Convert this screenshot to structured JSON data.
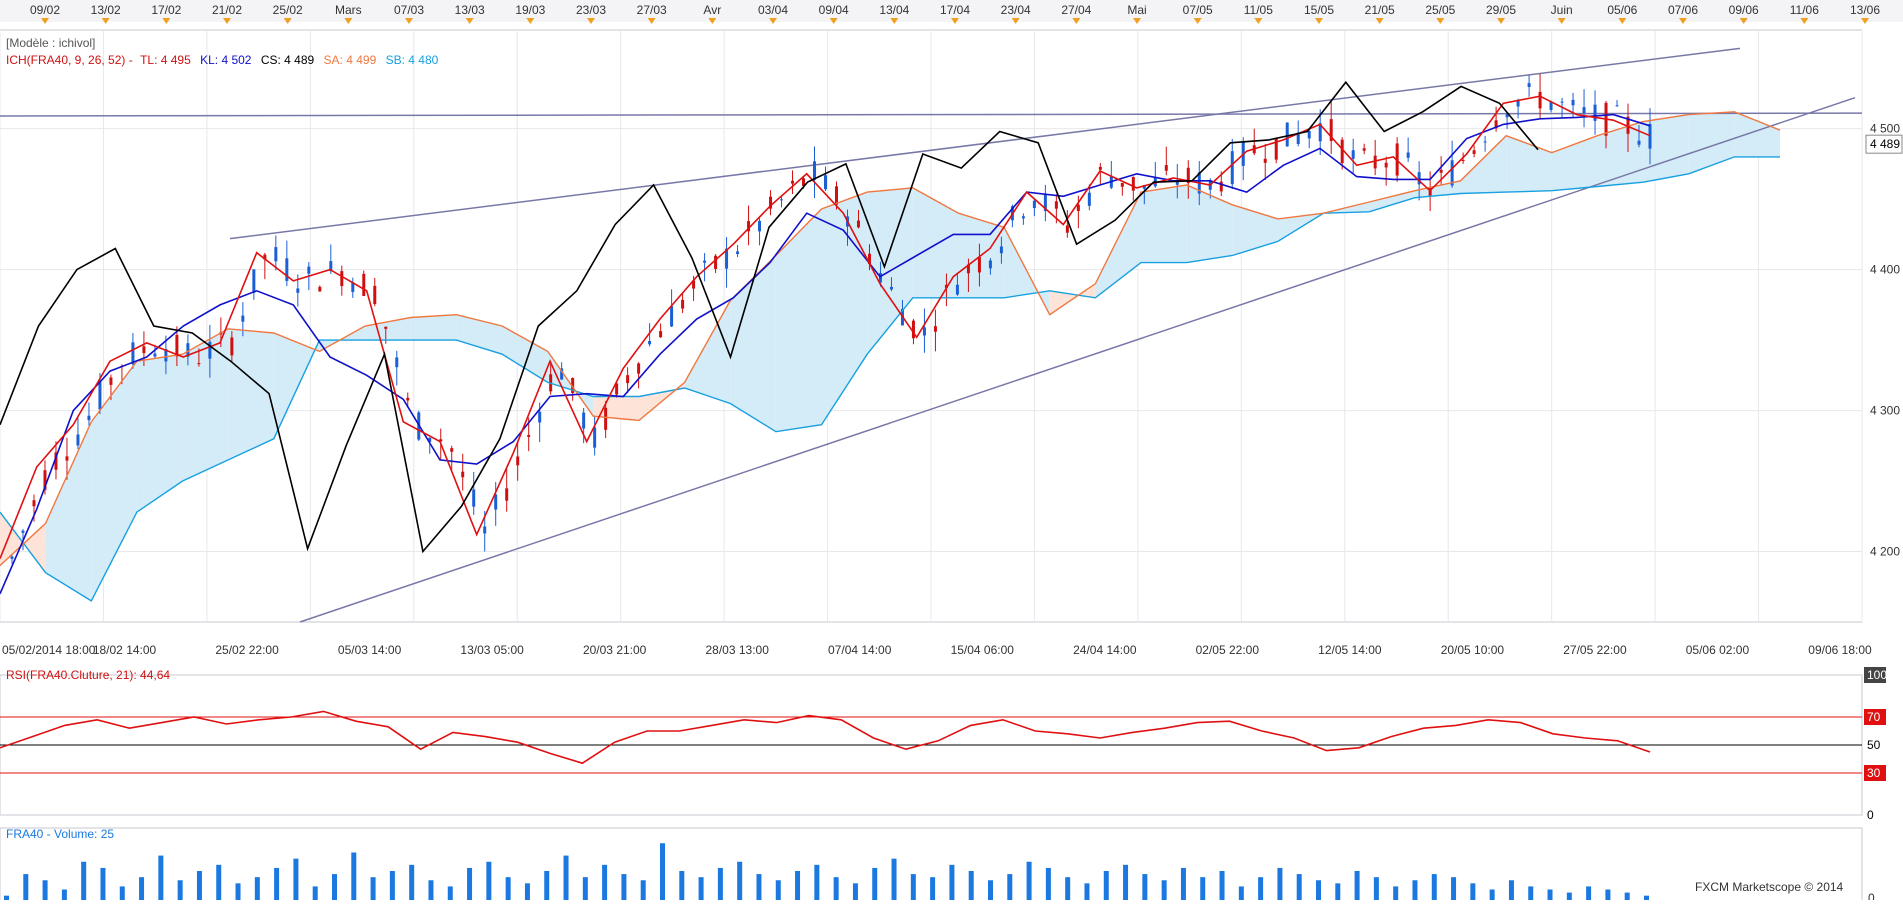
{
  "top_dates": [
    "09/02",
    "13/02",
    "17/02",
    "21/02",
    "25/02",
    "Mars",
    "07/03",
    "13/03",
    "19/03",
    "23/03",
    "27/03",
    "Avr",
    "03/04",
    "09/04",
    "13/04",
    "17/04",
    "23/04",
    "27/04",
    "Mai",
    "07/05",
    "11/05",
    "15/05",
    "21/05",
    "25/05",
    "29/05",
    "Juin",
    "05/06",
    "07/06",
    "09/06",
    "11/06",
    "13/06"
  ],
  "main_legend": {
    "model": "[Modèle : ichivol]",
    "ich": "ICH(FRA40, 9, 26, 52) -",
    "tl": "TL: 4 495",
    "kl": "KL: 4 502",
    "cs": "CS: 4 489",
    "sa": "SA: 4 499",
    "sb": "SB: 4 480"
  },
  "current_price_label": "4 489",
  "rsi_legend": "RSI(FRA40.Cluture, 21): 44,64",
  "volume_legend": "FRA40 - Volume: 25",
  "watermark": "FXCM Marketscope © 2014",
  "colors": {
    "tenkan": "#e01010",
    "kijun": "#1010cc",
    "chikou": "#000000",
    "senkou_a": "#f07840",
    "senkou_b": "#18a0e0",
    "cloud_bull": "#d4ecf8",
    "cloud_bear": "#fde3d8",
    "candle_up": "#1a5fd6",
    "candle_down": "#d01010",
    "trendline": "#7878a8",
    "rsi": "#e01010",
    "volume": "#1a78e0",
    "grid": "#e8e8ec",
    "marker": "#f0a020"
  },
  "chart_data": [
    {
      "type": "line",
      "title": "ICH(FRA40, 9, 26, 52)",
      "x_tick_labels": [
        "05/02/2014 18:00",
        "18/02 14:00",
        "25/02 22:00",
        "05/03 14:00",
        "13/03 05:00",
        "20/03 21:00",
        "28/03 13:00",
        "07/04 14:00",
        "15/04 06:00",
        "24/04 14:00",
        "02/05 22:00",
        "12/05 14:00",
        "20/05 10:00",
        "27/05 22:00",
        "05/06 02:00",
        "09/06 18:00"
      ],
      "y_tick_labels": [
        "4 200",
        "4 300",
        "4 400",
        "4 500"
      ],
      "ylim": [
        4150,
        4570
      ],
      "grid": true,
      "series": [
        {
          "name": "TL",
          "values": [
            4195,
            4260,
            4290,
            4335,
            4348,
            4338,
            4348,
            4412,
            4392,
            4400,
            4385,
            4292,
            4278,
            4212,
            4270,
            4335,
            4278,
            4330,
            4365,
            4395,
            4418,
            4445,
            4468,
            4440,
            4390,
            4352,
            4395,
            4415,
            4455,
            4432,
            4470,
            4458,
            4465,
            4460,
            4484,
            4492,
            4503,
            4474,
            4480,
            4456,
            4482,
            4518,
            4523,
            4510,
            4506,
            4495
          ]
        },
        {
          "name": "KL",
          "values": [
            4170,
            4230,
            4300,
            4328,
            4338,
            4360,
            4375,
            4385,
            4375,
            4338,
            4325,
            4308,
            4265,
            4262,
            4278,
            4310,
            4312,
            4310,
            4340,
            4365,
            4380,
            4405,
            4440,
            4428,
            4395,
            4410,
            4425,
            4425,
            4455,
            4452,
            4460,
            4468,
            4463,
            4463,
            4455,
            4474,
            4486,
            4466,
            4464,
            4464,
            4493,
            4503,
            4507,
            4508,
            4510,
            4502
          ]
        },
        {
          "name": "CS",
          "values": [
            4290,
            4360,
            4400,
            4415,
            4360,
            4355,
            4335,
            4312,
            4202,
            4275,
            4340,
            4200,
            4232,
            4280,
            4360,
            4385,
            4432,
            4460,
            4408,
            4338,
            4430,
            4462,
            4475,
            4402,
            4482,
            4472,
            4498,
            4490,
            4418,
            4435,
            4462,
            4463,
            4490,
            4492,
            4498,
            4533,
            4498,
            4512,
            4530,
            4518,
            4485
          ]
        },
        {
          "name": "SA",
          "values": [
            4190,
            4220,
            4292,
            4335,
            4340,
            4358,
            4355,
            4342,
            4360,
            4366,
            4368,
            4360,
            4342,
            4296,
            4293,
            4320,
            4378,
            4410,
            4443,
            4455,
            4458,
            4440,
            4430,
            4368,
            4390,
            4455,
            4460,
            4446,
            4436,
            4440,
            4448,
            4456,
            4463,
            4495,
            4483,
            4495,
            4505,
            4510,
            4512,
            4499
          ]
        },
        {
          "name": "SB",
          "values": [
            4228,
            4185,
            4165,
            4228,
            4250,
            4265,
            4280,
            4350,
            4350,
            4350,
            4350,
            4340,
            4320,
            4310,
            4310,
            4316,
            4305,
            4285,
            4290,
            4340,
            4380,
            4380,
            4380,
            4385,
            4380,
            4405,
            4405,
            4410,
            4420,
            4440,
            4441,
            4451,
            4454,
            4455,
            4456,
            4459,
            4462,
            4468,
            4480,
            4480
          ]
        }
      ]
    },
    {
      "type": "line",
      "title": "RSI(FRA40.Cluture, 21)",
      "y_tick_labels": [
        "0",
        "30",
        "50",
        "70",
        "100"
      ],
      "ylim": [
        0,
        100
      ],
      "series": [
        {
          "name": "RSI",
          "values": [
            48,
            56,
            64,
            68,
            62,
            66,
            70,
            65,
            68,
            70,
            74,
            67,
            63,
            47,
            59,
            56,
            52,
            44,
            37,
            52,
            60,
            60,
            64,
            68,
            66,
            71,
            68,
            55,
            47,
            53,
            64,
            68,
            60,
            58,
            55,
            59,
            62,
            66,
            67,
            60,
            55,
            46,
            48,
            56,
            62,
            64,
            68,
            66,
            58,
            55,
            53,
            45
          ]
        }
      ]
    },
    {
      "type": "bar",
      "title": "FRA40 - Volume",
      "y_tick_labels": [
        "0"
      ],
      "series": [
        {
          "name": "Volume",
          "values": [
            8,
            22,
            18,
            12,
            30,
            26,
            14,
            20,
            34,
            18,
            24,
            28,
            16,
            20,
            26,
            32,
            14,
            22,
            36,
            20,
            24,
            28,
            18,
            14,
            26,
            30,
            20,
            16,
            24,
            34,
            20,
            28,
            22,
            18,
            42,
            24,
            20,
            26,
            30,
            22,
            18,
            24,
            28,
            20,
            16,
            26,
            32,
            22,
            20,
            28,
            24,
            18,
            22,
            30,
            26,
            20,
            16,
            24,
            28,
            22,
            18,
            26,
            20,
            24,
            14,
            20,
            26,
            22,
            18,
            16,
            24,
            20,
            14,
            18,
            22,
            20,
            16,
            12,
            18,
            14,
            12,
            10,
            14,
            12,
            10,
            8
          ]
        }
      ]
    }
  ]
}
